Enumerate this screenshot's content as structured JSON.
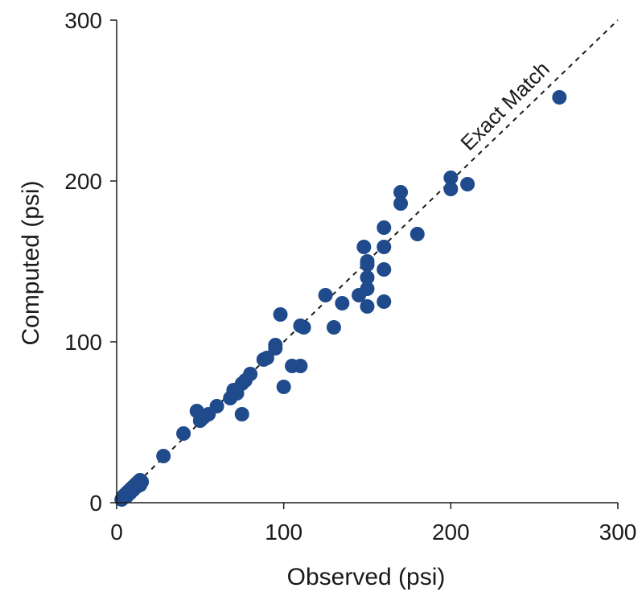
{
  "chart_data": {
    "type": "scatter",
    "title": "",
    "xlabel": "Observed (psi)",
    "ylabel": "Computed (psi)",
    "xlim": [
      0,
      300
    ],
    "ylim": [
      0,
      300
    ],
    "xticks": [
      0,
      100,
      200,
      300
    ],
    "yticks": [
      0,
      100,
      200,
      300
    ],
    "grid": false,
    "legend": "none",
    "colors": {
      "points": "#1f4b8c",
      "reference_line": "#1a1a1a",
      "axis": "#1a1a1a"
    },
    "reference_line": {
      "label": "Exact Match",
      "style": "dashed",
      "from": [
        0,
        0
      ],
      "to": [
        300,
        300
      ]
    },
    "series": [
      {
        "points": [
          [
            3,
            2
          ],
          [
            4,
            4
          ],
          [
            5,
            5
          ],
          [
            6,
            6
          ],
          [
            7,
            7
          ],
          [
            8,
            8
          ],
          [
            9,
            9
          ],
          [
            10,
            10
          ],
          [
            11,
            11
          ],
          [
            12,
            12
          ],
          [
            13,
            13
          ],
          [
            14,
            14
          ],
          [
            15,
            13
          ],
          [
            6,
            4
          ],
          [
            8,
            6
          ],
          [
            10,
            8
          ],
          [
            12,
            10
          ],
          [
            14,
            11
          ],
          [
            28,
            29
          ],
          [
            40,
            43
          ],
          [
            48,
            57
          ],
          [
            50,
            51
          ],
          [
            52,
            53
          ],
          [
            55,
            55
          ],
          [
            60,
            60
          ],
          [
            68,
            65
          ],
          [
            70,
            70
          ],
          [
            72,
            68
          ],
          [
            75,
            55
          ],
          [
            75,
            74
          ],
          [
            77,
            76
          ],
          [
            80,
            80
          ],
          [
            88,
            89
          ],
          [
            90,
            90
          ],
          [
            95,
            96
          ],
          [
            95,
            98
          ],
          [
            98,
            117
          ],
          [
            100,
            72
          ],
          [
            105,
            85
          ],
          [
            110,
            85
          ],
          [
            110,
            110
          ],
          [
            112,
            109
          ],
          [
            125,
            129
          ],
          [
            130,
            109
          ],
          [
            135,
            124
          ],
          [
            145,
            129
          ],
          [
            148,
            159
          ],
          [
            150,
            150
          ],
          [
            150,
            148
          ],
          [
            150,
            140
          ],
          [
            150,
            133
          ],
          [
            150,
            122
          ],
          [
            160,
            171
          ],
          [
            160,
            159
          ],
          [
            160,
            145
          ],
          [
            160,
            125
          ],
          [
            170,
            193
          ],
          [
            170,
            186
          ],
          [
            180,
            167
          ],
          [
            200,
            202
          ],
          [
            200,
            195
          ],
          [
            210,
            198
          ],
          [
            265,
            252
          ]
        ]
      }
    ]
  }
}
